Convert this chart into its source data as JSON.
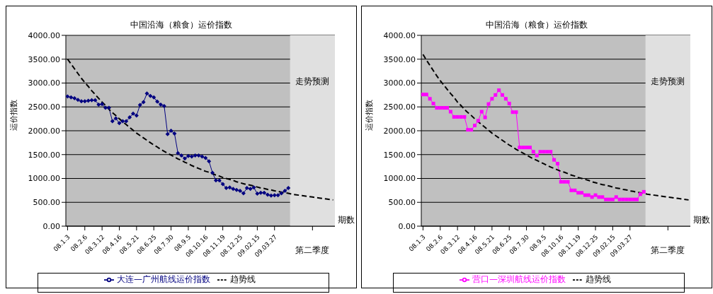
{
  "chart_data": [
    {
      "type": "line",
      "title": "中国沿海（粮食）运价指数",
      "xlabel": "期数",
      "ylabel": "运价指数",
      "categories": [
        "08.1.3",
        null,
        null,
        null,
        null,
        "08.2.6",
        null,
        null,
        null,
        null,
        "08.3.12",
        null,
        null,
        null,
        null,
        "08.4.16",
        null,
        null,
        null,
        null,
        "08.5.21",
        null,
        null,
        null,
        null,
        "08.6.25",
        null,
        null,
        null,
        null,
        "08.7.30",
        null,
        null,
        null,
        null,
        "08.9.5",
        null,
        null,
        null,
        null,
        "08.10.16",
        null,
        null,
        null,
        null,
        "08.11.19",
        null,
        null,
        null,
        null,
        "08.12.25",
        null,
        null,
        null,
        null,
        "09.02.15",
        null,
        null,
        null,
        null,
        "09.03.27",
        null,
        null,
        null,
        null,
        null,
        null,
        null,
        null,
        null,
        null,
        "第二季度",
        null,
        null,
        null,
        null,
        null,
        null
      ],
      "series": [
        {
          "name": "大连—广州航线运价指数",
          "color": "#000080",
          "marker": "diamond",
          "line_style": "solid",
          "values": [
            2720,
            2700,
            2680,
            2650,
            2620,
            2620,
            2630,
            2640,
            2640,
            2550,
            2560,
            2480,
            2480,
            2200,
            2260,
            2160,
            2200,
            2200,
            2280,
            2360,
            2320,
            2540,
            2600,
            2780,
            2730,
            2700,
            2610,
            2550,
            2520,
            1930,
            2000,
            1940,
            1530,
            1480,
            1420,
            1470,
            1460,
            1480,
            1480,
            1460,
            1430,
            1360,
            1120,
            960,
            960,
            880,
            800,
            810,
            780,
            760,
            740,
            690,
            800,
            780,
            810,
            680,
            700,
            700,
            660,
            640,
            650,
            650,
            690,
            740,
            800,
            null,
            null,
            null,
            null,
            null,
            null,
            null,
            null,
            null,
            null,
            null,
            null,
            null
          ]
        },
        {
          "name": "趋势线",
          "color": "#000000",
          "marker": "none",
          "line_style": "dashed",
          "values": [
            3500,
            3400,
            3300,
            3200,
            3100,
            3010,
            2930,
            2840,
            2760,
            2680,
            2600,
            2530,
            2450,
            2380,
            2320,
            2250,
            2190,
            2130,
            2070,
            2010,
            1950,
            1900,
            1850,
            1800,
            1750,
            1700,
            1660,
            1610,
            1570,
            1530,
            1490,
            1450,
            1410,
            1380,
            1340,
            1310,
            1270,
            1240,
            1210,
            1180,
            1150,
            1130,
            1100,
            1070,
            1050,
            1020,
            1000,
            980,
            960,
            930,
            910,
            890,
            870,
            860,
            840,
            820,
            800,
            790,
            770,
            760,
            740,
            730,
            710,
            700,
            690,
            670,
            660,
            650,
            640,
            630,
            620,
            610,
            600,
            590,
            580,
            570,
            560,
            550
          ]
        }
      ],
      "ylim": [
        0,
        4000
      ],
      "yticks": [
        {
          "value": 0,
          "label": "0.00"
        },
        {
          "value": 500,
          "label": "500.00"
        },
        {
          "value": 1000,
          "label": "1000.00"
        },
        {
          "value": 1500,
          "label": "1500.00"
        },
        {
          "value": 2000,
          "label": "2000.00"
        },
        {
          "value": 2500,
          "label": "2500.00"
        },
        {
          "value": 3000,
          "label": "3000.00"
        },
        {
          "value": 3500,
          "label": "3500.00"
        },
        {
          "value": 4000,
          "label": "4000.00"
        }
      ],
      "grid": "y",
      "legend": "bottom",
      "annotations": [
        "走势预测"
      ]
    },
    {
      "type": "line",
      "title": "中国沿海（粮食）运价指数",
      "xlabel": "期数",
      "ylabel": "运价指数",
      "categories": [
        "08.1.3",
        null,
        null,
        null,
        null,
        "08.2.6",
        null,
        null,
        null,
        null,
        "08.3.12",
        null,
        null,
        null,
        null,
        "08.4.16",
        null,
        null,
        null,
        null,
        "08.5.21",
        null,
        null,
        null,
        null,
        "08.6.25",
        null,
        null,
        null,
        null,
        "08.7.30",
        null,
        null,
        null,
        null,
        "08.9.5",
        null,
        null,
        null,
        null,
        "08.10.16",
        null,
        null,
        null,
        null,
        "08.11.19",
        null,
        null,
        null,
        null,
        "08.12.25",
        null,
        null,
        null,
        null,
        "09.02.15",
        null,
        null,
        null,
        null,
        "09.03.27",
        null,
        null,
        null,
        null,
        null,
        null,
        null,
        null,
        null,
        null,
        "第二季度",
        null,
        null,
        null,
        null,
        null,
        null
      ],
      "series": [
        {
          "name": "营口—深圳航线运价指数",
          "color": "#ff00ff",
          "marker": "square",
          "line_style": "solid",
          "values": [
            2760,
            2760,
            2670,
            2570,
            2480,
            2480,
            2480,
            2480,
            2400,
            2290,
            2290,
            2290,
            2290,
            2020,
            2020,
            2110,
            2210,
            2400,
            2280,
            2560,
            2670,
            2750,
            2850,
            2750,
            2670,
            2570,
            2390,
            2390,
            1650,
            1650,
            1650,
            1650,
            1560,
            1480,
            1560,
            1560,
            1560,
            1560,
            1390,
            1310,
            930,
            930,
            930,
            750,
            750,
            700,
            700,
            650,
            650,
            610,
            650,
            610,
            610,
            560,
            560,
            560,
            610,
            560,
            560,
            560,
            560,
            560,
            560,
            670,
            720,
            null,
            null,
            null,
            null,
            null,
            null,
            null,
            null,
            null,
            null,
            null,
            null,
            null
          ]
        },
        {
          "name": "趋势线",
          "color": "#000000",
          "marker": "none",
          "line_style": "dashed",
          "values": [
            3600,
            3480,
            3370,
            3260,
            3150,
            3050,
            2960,
            2870,
            2780,
            2700,
            2600,
            2530,
            2450,
            2380,
            2320,
            2250,
            2190,
            2130,
            2070,
            2010,
            1950,
            1900,
            1850,
            1800,
            1750,
            1700,
            1660,
            1610,
            1570,
            1530,
            1490,
            1450,
            1410,
            1380,
            1340,
            1310,
            1270,
            1240,
            1210,
            1180,
            1150,
            1130,
            1100,
            1070,
            1050,
            1020,
            1000,
            980,
            960,
            930,
            910,
            890,
            870,
            860,
            840,
            820,
            800,
            790,
            770,
            760,
            740,
            730,
            710,
            700,
            690,
            670,
            660,
            650,
            640,
            630,
            620,
            610,
            600,
            590,
            580,
            570,
            560,
            550
          ]
        }
      ],
      "ylim": [
        0,
        4000
      ],
      "yticks": [
        {
          "value": 0,
          "label": "0.00"
        },
        {
          "value": 500,
          "label": "500.00"
        },
        {
          "value": 1000,
          "label": "1000.00"
        },
        {
          "value": 1500,
          "label": "1500.00"
        },
        {
          "value": 2000,
          "label": "2000.00"
        },
        {
          "value": 2500,
          "label": "2500.00"
        },
        {
          "value": 3000,
          "label": "3000.00"
        },
        {
          "value": 3500,
          "label": "3500.00"
        },
        {
          "value": 4000,
          "label": "4000.00"
        }
      ],
      "grid": "y",
      "legend": "bottom",
      "annotations": [
        "走势预测"
      ]
    }
  ]
}
